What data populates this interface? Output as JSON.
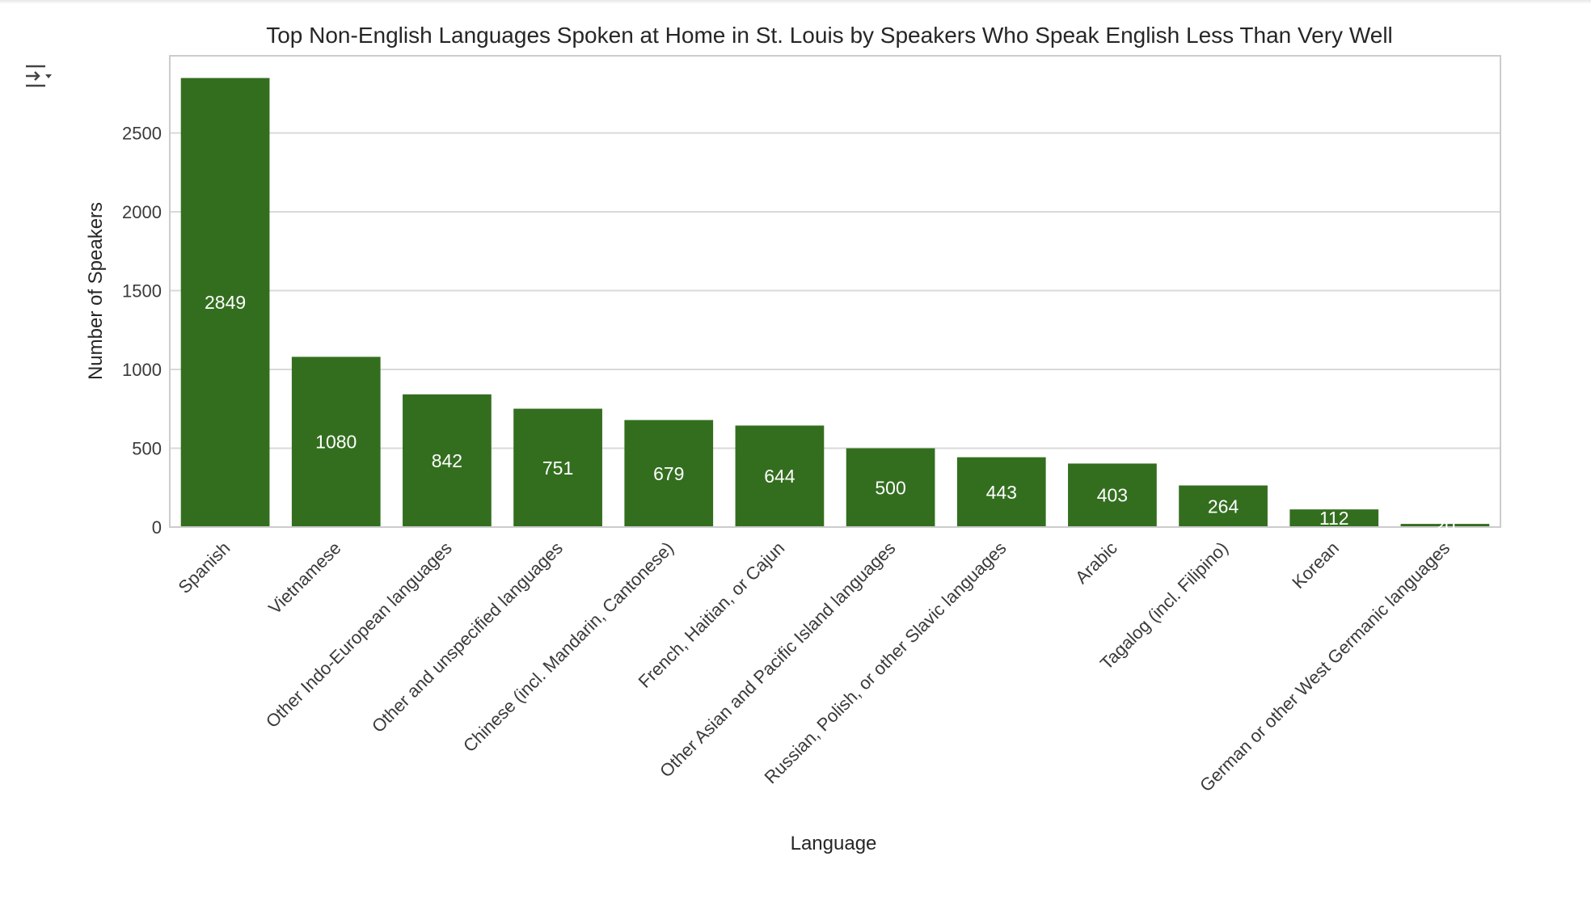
{
  "cell_output": {
    "toggle_icon": "output-collapse-icon"
  },
  "chart_data": {
    "type": "bar",
    "title": "Top Non-English Languages Spoken at Home in St. Louis by Speakers Who Speak English Less Than Very Well",
    "xlabel": "Language",
    "ylabel": "Number of Speakers",
    "categories": [
      "Spanish",
      "Vietnamese",
      "Other Indo-European languages",
      "Other and unspecified languages",
      "Chinese (incl. Mandarin, Cantonese)",
      "French, Haitian, or Cajun",
      "Other Asian and Pacific Island languages",
      "Russian, Polish, or other Slavic languages",
      "Arabic",
      "Tagalog (incl. Filipino)",
      "Korean",
      "German or other West Germanic languages"
    ],
    "values": [
      2849,
      1080,
      842,
      751,
      679,
      644,
      500,
      443,
      403,
      264,
      112,
      20
    ],
    "data_labels": [
      "2849",
      "1080",
      "842",
      "751",
      "679",
      "644",
      "500",
      "443",
      "403",
      "264",
      "112",
      "20"
    ],
    "ylim": [
      0,
      2990
    ],
    "yticks": [
      0,
      500,
      1000,
      1500,
      2000,
      2500
    ],
    "grid": true,
    "bar_color": "#336e1f",
    "grid_color": "#d9d9d9",
    "frame_color": "#cccccc"
  }
}
